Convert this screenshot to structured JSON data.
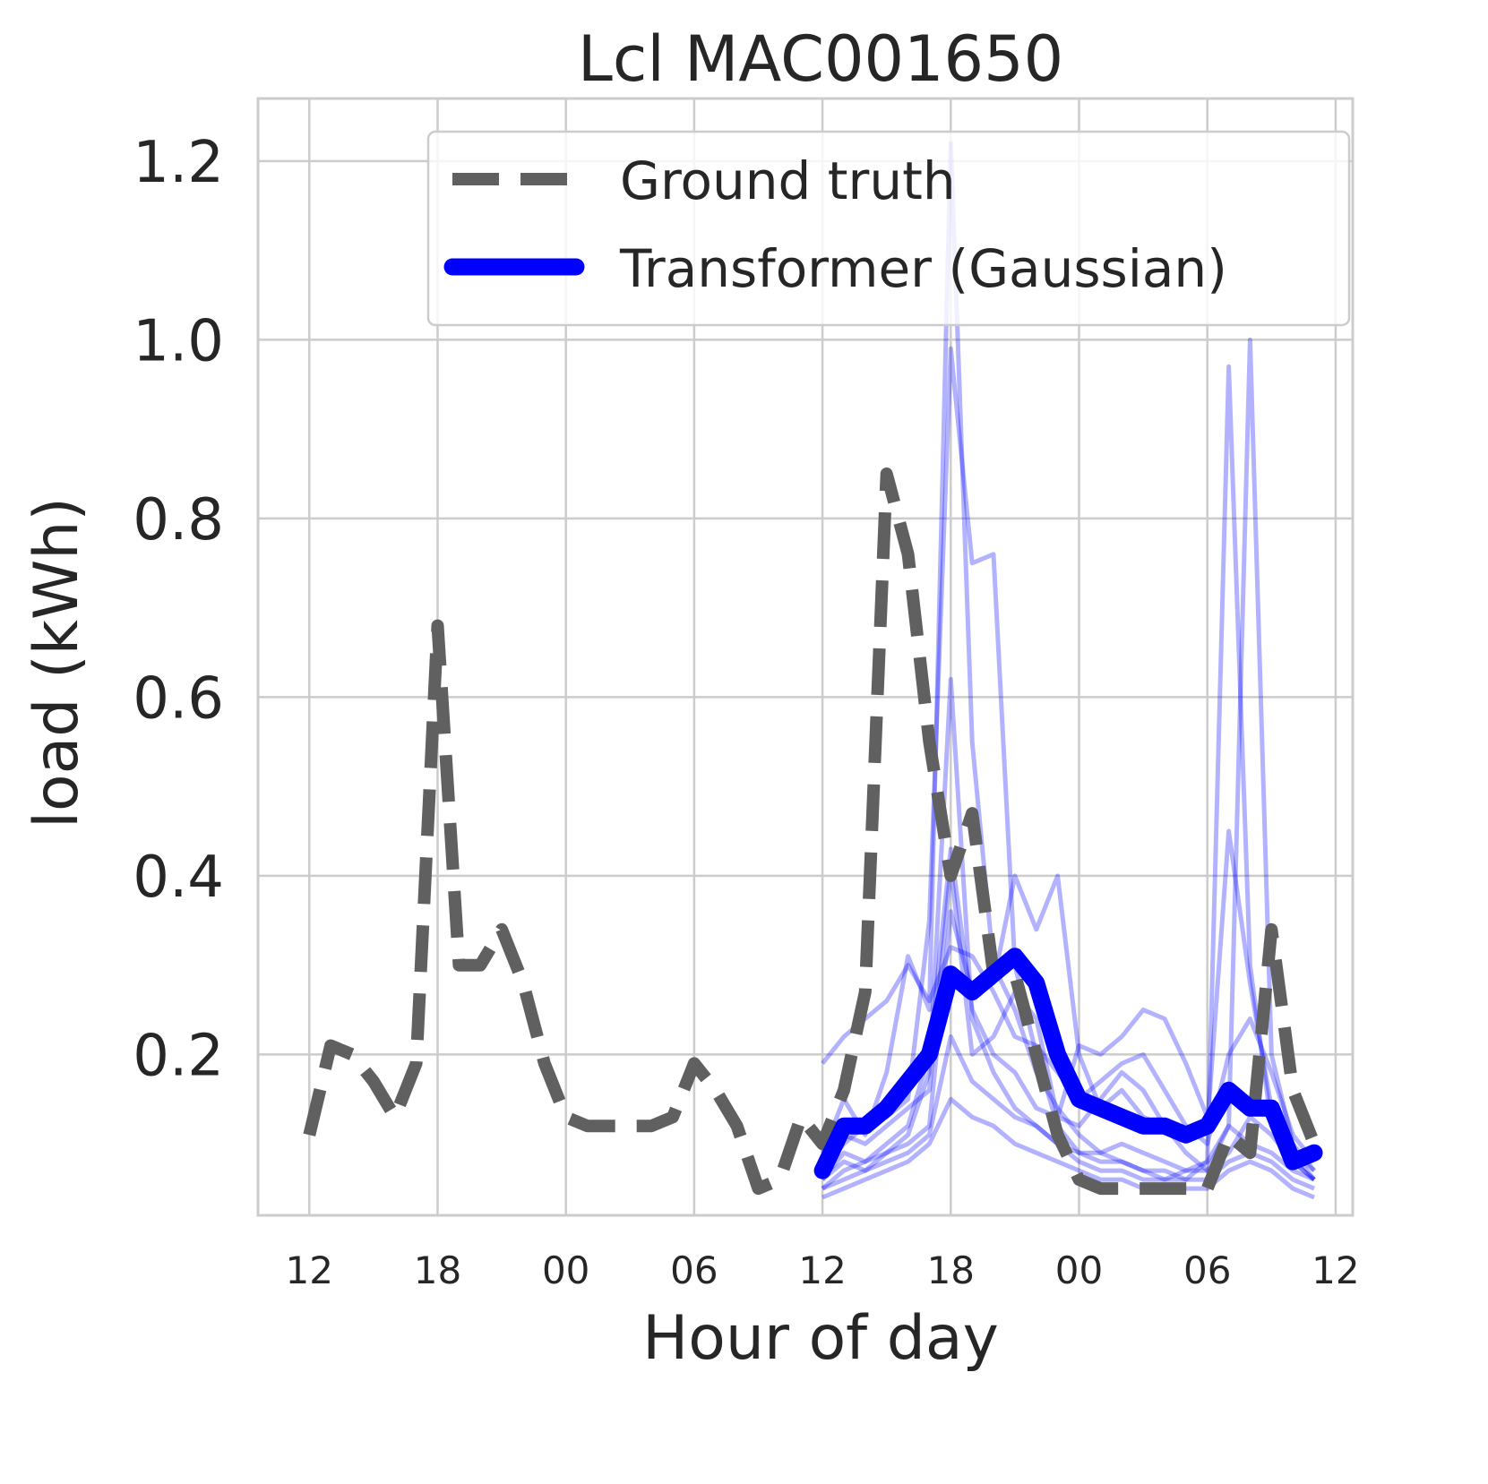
{
  "chart_data": {
    "type": "line",
    "title": "Lcl MAC001650",
    "xlabel": "Hour of day",
    "ylabel": "load (kWh)",
    "x_tick_labels": [
      "12",
      "18",
      "00",
      "06",
      "12",
      "18",
      "00",
      "06",
      "12"
    ],
    "x_tick_hours": [
      0,
      6,
      12,
      18,
      24,
      30,
      36,
      42,
      48
    ],
    "xlim_hours": [
      -2.4,
      48.8
    ],
    "yticks": [
      "0.2",
      "0.4",
      "0.6",
      "0.8",
      "1.0",
      "1.2"
    ],
    "ylim": [
      0.02,
      1.27
    ],
    "grid": true,
    "legend_position": "top-right",
    "legend": [
      {
        "label": "Ground truth",
        "style": "dashed",
        "color": "#606060"
      },
      {
        "label": "Transformer (Gaussian)",
        "style": "solid",
        "color": "#0000ff"
      }
    ],
    "series": [
      {
        "name": "Ground truth",
        "color": "#606060",
        "x": [
          0,
          1,
          2,
          3,
          4,
          5,
          6,
          7,
          8,
          9,
          10,
          11,
          12,
          13,
          14,
          15,
          16,
          17,
          18,
          19,
          20,
          21,
          22,
          23,
          24,
          25,
          26,
          27,
          28,
          29,
          30,
          31,
          32,
          33,
          34,
          35,
          36,
          37,
          38,
          39,
          40,
          41,
          42,
          43,
          44,
          45,
          46,
          47
        ],
        "y": [
          0.11,
          0.21,
          0.2,
          0.17,
          0.13,
          0.19,
          0.68,
          0.3,
          0.3,
          0.34,
          0.28,
          0.19,
          0.13,
          0.12,
          0.12,
          0.12,
          0.12,
          0.13,
          0.19,
          0.16,
          0.12,
          0.05,
          0.06,
          0.13,
          0.1,
          0.16,
          0.27,
          0.85,
          0.76,
          0.55,
          0.4,
          0.47,
          0.29,
          0.29,
          0.2,
          0.11,
          0.06,
          0.05,
          0.05,
          0.05,
          0.05,
          0.05,
          0.05,
          0.11,
          0.09,
          0.34,
          0.16,
          0.1
        ]
      },
      {
        "name": "Transformer (Gaussian)",
        "color": "#0000ff",
        "x": [
          24,
          25,
          26,
          27,
          28,
          29,
          30,
          31,
          32,
          33,
          34,
          35,
          36,
          37,
          38,
          39,
          40,
          41,
          42,
          43,
          44,
          45,
          46,
          47
        ],
        "y": [
          0.07,
          0.12,
          0.12,
          0.14,
          0.17,
          0.2,
          0.29,
          0.27,
          0.29,
          0.31,
          0.28,
          0.2,
          0.15,
          0.14,
          0.13,
          0.12,
          0.12,
          0.11,
          0.12,
          0.16,
          0.14,
          0.14,
          0.08,
          0.09
        ]
      }
    ],
    "samples": [
      {
        "x": [
          24,
          25,
          26,
          27,
          28,
          29,
          30,
          31,
          32,
          33,
          34,
          35,
          36,
          37,
          38,
          39,
          40,
          41,
          42,
          43,
          44,
          45,
          46,
          47
        ],
        "y": [
          0.19,
          0.22,
          0.24,
          0.26,
          0.3,
          0.26,
          0.32,
          0.31,
          0.27,
          0.22,
          0.21,
          0.18,
          0.15,
          0.17,
          0.19,
          0.2,
          0.16,
          0.12,
          0.1,
          0.2,
          0.24,
          0.18,
          0.11,
          0.08
        ]
      },
      {
        "x": [
          24,
          25,
          26,
          27,
          28,
          29,
          30,
          31,
          32,
          33,
          34,
          35,
          36,
          37,
          38,
          39,
          40,
          41,
          42,
          43,
          44,
          45,
          46,
          47
        ],
        "y": [
          0.09,
          0.15,
          0.11,
          0.18,
          0.31,
          0.25,
          1.22,
          0.55,
          0.3,
          0.25,
          0.18,
          0.14,
          0.11,
          0.09,
          0.08,
          0.07,
          0.06,
          0.07,
          0.08,
          0.12,
          0.1,
          0.09,
          0.07,
          0.06
        ]
      },
      {
        "x": [
          24,
          25,
          26,
          27,
          28,
          29,
          30,
          31,
          32,
          33,
          34,
          35,
          36,
          37,
          38,
          39,
          40,
          41,
          42,
          43,
          44,
          45,
          46,
          47
        ],
        "y": [
          0.07,
          0.1,
          0.12,
          0.13,
          0.15,
          0.35,
          0.99,
          0.75,
          0.76,
          0.3,
          0.2,
          0.12,
          0.09,
          0.08,
          0.08,
          0.07,
          0.07,
          0.06,
          0.08,
          0.97,
          0.3,
          0.12,
          0.08,
          0.06
        ]
      },
      {
        "x": [
          24,
          25,
          26,
          27,
          28,
          29,
          30,
          31,
          32,
          33,
          34,
          35,
          36,
          37,
          38,
          39,
          40,
          41,
          42,
          43,
          44,
          45,
          46,
          47
        ],
        "y": [
          0.06,
          0.09,
          0.08,
          0.1,
          0.12,
          0.2,
          0.43,
          0.25,
          0.2,
          0.18,
          0.14,
          0.13,
          0.12,
          0.15,
          0.18,
          0.16,
          0.12,
          0.09,
          0.07,
          0.12,
          1.0,
          0.2,
          0.1,
          0.07
        ]
      },
      {
        "x": [
          24,
          25,
          26,
          27,
          28,
          29,
          30,
          31,
          32,
          33,
          34,
          35,
          36,
          37,
          38,
          39,
          40,
          41,
          42,
          43,
          44,
          45,
          46,
          47
        ],
        "y": [
          0.05,
          0.07,
          0.08,
          0.09,
          0.11,
          0.18,
          0.62,
          0.24,
          0.18,
          0.14,
          0.12,
          0.1,
          0.09,
          0.09,
          0.1,
          0.09,
          0.08,
          0.07,
          0.07,
          0.09,
          0.13,
          0.11,
          0.08,
          0.06
        ]
      },
      {
        "x": [
          24,
          25,
          26,
          27,
          28,
          29,
          30,
          31,
          32,
          33,
          34,
          35,
          36,
          37,
          38,
          39,
          40,
          41,
          42,
          43,
          44,
          45,
          46,
          47
        ],
        "y": [
          0.08,
          0.11,
          0.1,
          0.12,
          0.14,
          0.16,
          0.41,
          0.2,
          0.22,
          0.27,
          0.24,
          0.13,
          0.21,
          0.2,
          0.22,
          0.25,
          0.24,
          0.19,
          0.13,
          0.16,
          0.14,
          0.13,
          0.09,
          0.07
        ]
      },
      {
        "x": [
          24,
          25,
          26,
          27,
          28,
          29,
          30,
          31,
          32,
          33,
          34,
          35,
          36,
          37,
          38,
          39,
          40,
          41,
          42,
          43,
          44,
          45,
          46,
          47
        ],
        "y": [
          0.06,
          0.08,
          0.07,
          0.09,
          0.1,
          0.12,
          0.36,
          0.27,
          0.28,
          0.4,
          0.34,
          0.4,
          0.2,
          0.14,
          0.16,
          0.13,
          0.12,
          0.11,
          0.12,
          0.45,
          0.28,
          0.14,
          0.09,
          0.06
        ]
      },
      {
        "x": [
          24,
          25,
          26,
          27,
          28,
          29,
          30,
          31,
          32,
          33,
          34,
          35,
          36,
          37,
          38,
          39,
          40,
          41,
          42,
          43,
          44,
          45,
          46,
          47
        ],
        "y": [
          0.05,
          0.06,
          0.07,
          0.08,
          0.09,
          0.11,
          0.22,
          0.17,
          0.15,
          0.13,
          0.12,
          0.1,
          0.08,
          0.07,
          0.07,
          0.06,
          0.06,
          0.06,
          0.06,
          0.08,
          0.09,
          0.08,
          0.06,
          0.05
        ]
      },
      {
        "x": [
          24,
          25,
          26,
          27,
          28,
          29,
          30,
          31,
          32,
          33,
          34,
          35,
          36,
          37,
          38,
          39,
          40,
          41,
          42,
          43,
          44,
          45,
          46,
          47
        ],
        "y": [
          0.04,
          0.05,
          0.06,
          0.07,
          0.08,
          0.1,
          0.15,
          0.13,
          0.12,
          0.1,
          0.09,
          0.08,
          0.07,
          0.06,
          0.06,
          0.05,
          0.05,
          0.05,
          0.05,
          0.07,
          0.08,
          0.07,
          0.05,
          0.04
        ]
      }
    ]
  }
}
